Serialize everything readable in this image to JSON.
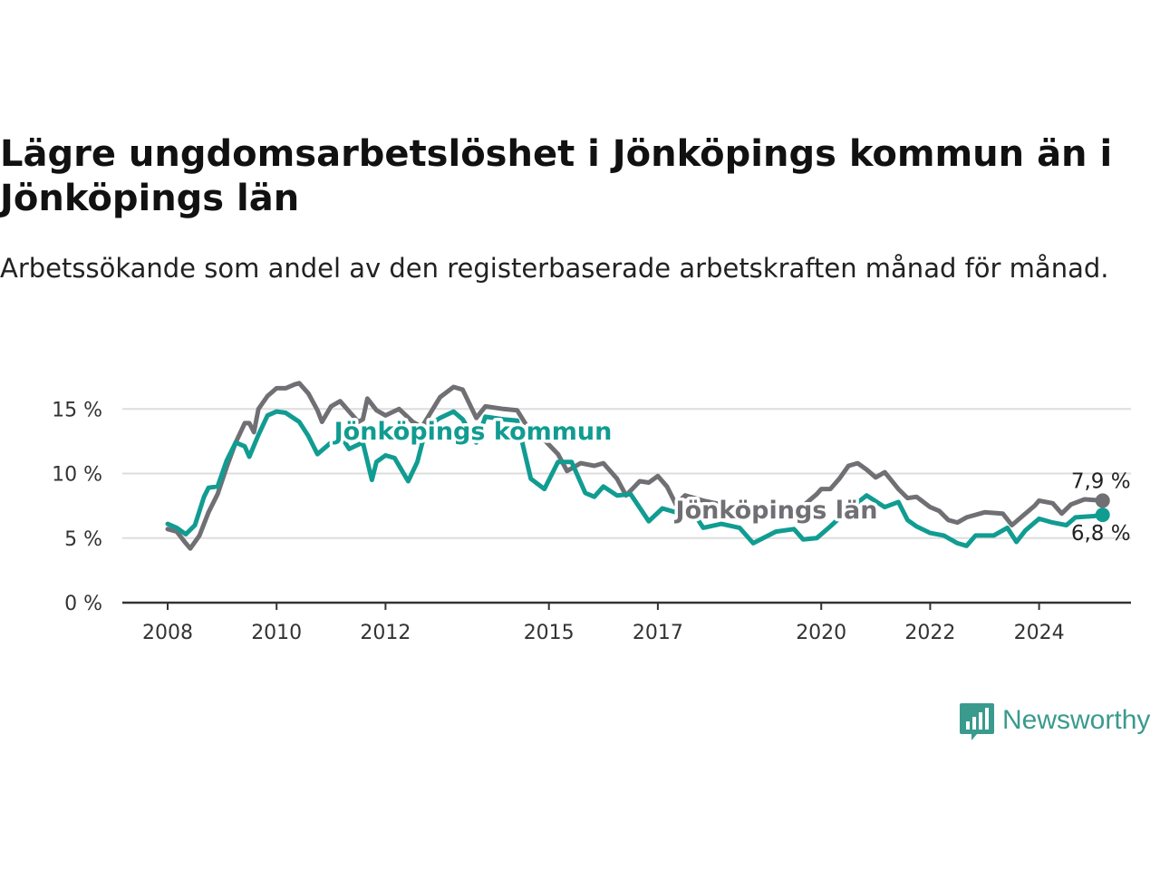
{
  "colors": {
    "kommun": "#119c92",
    "lan": "#707074",
    "grid": "#dddddd",
    "axis": "#333333",
    "brand": "#3a9a8e"
  },
  "brand": {
    "name": "Newsworthy",
    "icon": "newsworthy-logo-icon"
  },
  "chart_data": {
    "type": "line",
    "title": "Lägre ungdomsarbetslöshet i Jönköpings kommun än i Jönköpings län",
    "subtitle": "Arbetssökande som andel av den registerbaserade arbetskraften månad för månad.",
    "xlabel": "",
    "ylabel": "",
    "y_unit": "%",
    "ylim": [
      0,
      17
    ],
    "xlim": [
      "2008-01",
      "2025-08"
    ],
    "yticks": [
      {
        "value": 0,
        "label": "0 %"
      },
      {
        "value": 5,
        "label": "5 %"
      },
      {
        "value": 10,
        "label": "10 %"
      },
      {
        "value": 15,
        "label": "15 %"
      }
    ],
    "xticks": [
      {
        "value": "2008-01",
        "label": "2008"
      },
      {
        "value": "2010-01",
        "label": "2010"
      },
      {
        "value": "2012-01",
        "label": "2012"
      },
      {
        "value": "2015-01",
        "label": "2015"
      },
      {
        "value": "2017-01",
        "label": "2017"
      },
      {
        "value": "2020-01",
        "label": "2020"
      },
      {
        "value": "2022-01",
        "label": "2022"
      },
      {
        "value": "2024-01",
        "label": "2024"
      }
    ],
    "grid": true,
    "legend": "inline labels",
    "series": [
      {
        "name": "Jönköpings län",
        "color": "#707074",
        "end_label": "7,9 %",
        "points": [
          [
            "2008-01",
            5.7
          ],
          [
            "2008-03",
            5.5
          ],
          [
            "2008-05",
            4.6
          ],
          [
            "2008-06",
            4.2
          ],
          [
            "2008-08",
            5.2
          ],
          [
            "2008-10",
            7.0
          ],
          [
            "2008-12",
            8.4
          ],
          [
            "2009-02",
            10.5
          ],
          [
            "2009-04",
            12.4
          ],
          [
            "2009-06",
            13.9
          ],
          [
            "2009-07",
            13.9
          ],
          [
            "2009-08",
            13.2
          ],
          [
            "2009-09",
            15.0
          ],
          [
            "2009-11",
            16.0
          ],
          [
            "2010-01",
            16.6
          ],
          [
            "2010-03",
            16.6
          ],
          [
            "2010-05",
            16.9
          ],
          [
            "2010-06",
            17.0
          ],
          [
            "2010-08",
            16.2
          ],
          [
            "2010-10",
            14.9
          ],
          [
            "2010-11",
            14.0
          ],
          [
            "2011-01",
            15.2
          ],
          [
            "2011-03",
            15.6
          ],
          [
            "2011-05",
            14.8
          ],
          [
            "2011-07",
            14.0
          ],
          [
            "2011-08",
            14.2
          ],
          [
            "2011-09",
            15.8
          ],
          [
            "2011-11",
            14.9
          ],
          [
            "2012-01",
            14.5
          ],
          [
            "2012-04",
            15.0
          ],
          [
            "2012-07",
            14.0
          ],
          [
            "2012-09",
            13.6
          ],
          [
            "2013-01",
            15.9
          ],
          [
            "2013-04",
            16.7
          ],
          [
            "2013-06",
            16.5
          ],
          [
            "2013-09",
            14.3
          ],
          [
            "2013-11",
            15.2
          ],
          [
            "2014-03",
            15.0
          ],
          [
            "2014-06",
            14.9
          ],
          [
            "2014-09",
            13.2
          ],
          [
            "2014-12",
            12.6
          ],
          [
            "2015-03",
            11.5
          ],
          [
            "2015-05",
            10.2
          ],
          [
            "2015-08",
            10.8
          ],
          [
            "2015-11",
            10.6
          ],
          [
            "2016-01",
            10.8
          ],
          [
            "2016-04",
            9.6
          ],
          [
            "2016-06",
            8.3
          ],
          [
            "2016-09",
            9.4
          ],
          [
            "2016-11",
            9.3
          ],
          [
            "2017-01",
            9.8
          ],
          [
            "2017-03",
            9.0
          ],
          [
            "2017-05",
            7.6
          ],
          [
            "2017-07",
            8.3
          ],
          [
            "2017-11",
            7.9
          ],
          [
            "2018-03",
            7.6
          ],
          [
            "2018-07",
            6.9
          ],
          [
            "2018-11",
            7.6
          ],
          [
            "2019-03",
            7.2
          ],
          [
            "2019-07",
            6.9
          ],
          [
            "2019-09",
            7.5
          ],
          [
            "2019-12",
            8.4
          ],
          [
            "2020-01",
            8.8
          ],
          [
            "2020-03",
            8.8
          ],
          [
            "2020-05",
            9.6
          ],
          [
            "2020-07",
            10.6
          ],
          [
            "2020-09",
            10.8
          ],
          [
            "2020-11",
            10.3
          ],
          [
            "2021-01",
            9.7
          ],
          [
            "2021-03",
            10.1
          ],
          [
            "2021-06",
            8.8
          ],
          [
            "2021-08",
            8.1
          ],
          [
            "2021-10",
            8.2
          ],
          [
            "2022-01",
            7.4
          ],
          [
            "2022-03",
            7.1
          ],
          [
            "2022-05",
            6.4
          ],
          [
            "2022-07",
            6.2
          ],
          [
            "2022-09",
            6.6
          ],
          [
            "2023-01",
            7.0
          ],
          [
            "2023-05",
            6.9
          ],
          [
            "2023-07",
            6.0
          ],
          [
            "2023-09",
            6.6
          ],
          [
            "2023-12",
            7.5
          ],
          [
            "2024-01",
            7.9
          ],
          [
            "2024-04",
            7.7
          ],
          [
            "2024-06",
            6.9
          ],
          [
            "2024-08",
            7.6
          ],
          [
            "2024-11",
            8.0
          ],
          [
            "2025-03",
            7.9
          ]
        ]
      },
      {
        "name": "Jönköpings kommun",
        "color": "#119c92",
        "end_label": "6,8 %",
        "points": [
          [
            "2008-01",
            6.1
          ],
          [
            "2008-03",
            5.8
          ],
          [
            "2008-05",
            5.3
          ],
          [
            "2008-07",
            6.0
          ],
          [
            "2008-09",
            8.2
          ],
          [
            "2008-10",
            8.9
          ],
          [
            "2008-12",
            9.0
          ],
          [
            "2009-02",
            11.0
          ],
          [
            "2009-04",
            12.4
          ],
          [
            "2009-06",
            12.1
          ],
          [
            "2009-07",
            11.3
          ],
          [
            "2009-09",
            13.0
          ],
          [
            "2009-11",
            14.5
          ],
          [
            "2010-01",
            14.8
          ],
          [
            "2010-03",
            14.7
          ],
          [
            "2010-06",
            14.0
          ],
          [
            "2010-08",
            12.9
          ],
          [
            "2010-10",
            11.5
          ],
          [
            "2011-01",
            12.4
          ],
          [
            "2011-03",
            13.0
          ],
          [
            "2011-05",
            11.9
          ],
          [
            "2011-08",
            12.4
          ],
          [
            "2011-10",
            9.5
          ],
          [
            "2011-11",
            10.9
          ],
          [
            "2012-01",
            11.4
          ],
          [
            "2012-03",
            11.2
          ],
          [
            "2012-06",
            9.4
          ],
          [
            "2012-08",
            10.9
          ],
          [
            "2012-10",
            13.6
          ],
          [
            "2013-01",
            14.3
          ],
          [
            "2013-04",
            14.8
          ],
          [
            "2013-06",
            14.2
          ],
          [
            "2013-09",
            12.4
          ],
          [
            "2013-11",
            14.4
          ],
          [
            "2014-03",
            14.2
          ],
          [
            "2014-06",
            14.1
          ],
          [
            "2014-09",
            9.6
          ],
          [
            "2014-12",
            8.8
          ],
          [
            "2015-03",
            10.9
          ],
          [
            "2015-06",
            10.9
          ],
          [
            "2015-09",
            8.5
          ],
          [
            "2015-11",
            8.2
          ],
          [
            "2016-01",
            9.0
          ],
          [
            "2016-04",
            8.3
          ],
          [
            "2016-07",
            8.4
          ],
          [
            "2016-11",
            6.3
          ],
          [
            "2017-02",
            7.3
          ],
          [
            "2017-05",
            7.0
          ],
          [
            "2017-08",
            7.4
          ],
          [
            "2017-11",
            5.8
          ],
          [
            "2018-03",
            6.1
          ],
          [
            "2018-07",
            5.8
          ],
          [
            "2018-10",
            4.6
          ],
          [
            "2019-03",
            5.5
          ],
          [
            "2019-07",
            5.7
          ],
          [
            "2019-09",
            4.9
          ],
          [
            "2019-12",
            5.0
          ],
          [
            "2020-03",
            5.9
          ],
          [
            "2020-07",
            7.2
          ],
          [
            "2020-11",
            8.3
          ],
          [
            "2021-03",
            7.4
          ],
          [
            "2021-06",
            7.8
          ],
          [
            "2021-08",
            6.4
          ],
          [
            "2021-10",
            5.9
          ],
          [
            "2022-01",
            5.4
          ],
          [
            "2022-04",
            5.2
          ],
          [
            "2022-07",
            4.6
          ],
          [
            "2022-09",
            4.4
          ],
          [
            "2022-11",
            5.2
          ],
          [
            "2023-03",
            5.2
          ],
          [
            "2023-06",
            5.8
          ],
          [
            "2023-08",
            4.7
          ],
          [
            "2023-10",
            5.6
          ],
          [
            "2024-01",
            6.5
          ],
          [
            "2024-04",
            6.2
          ],
          [
            "2024-07",
            6.0
          ],
          [
            "2024-09",
            6.6
          ],
          [
            "2025-01",
            6.7
          ],
          [
            "2025-03",
            6.8
          ]
        ]
      }
    ]
  }
}
